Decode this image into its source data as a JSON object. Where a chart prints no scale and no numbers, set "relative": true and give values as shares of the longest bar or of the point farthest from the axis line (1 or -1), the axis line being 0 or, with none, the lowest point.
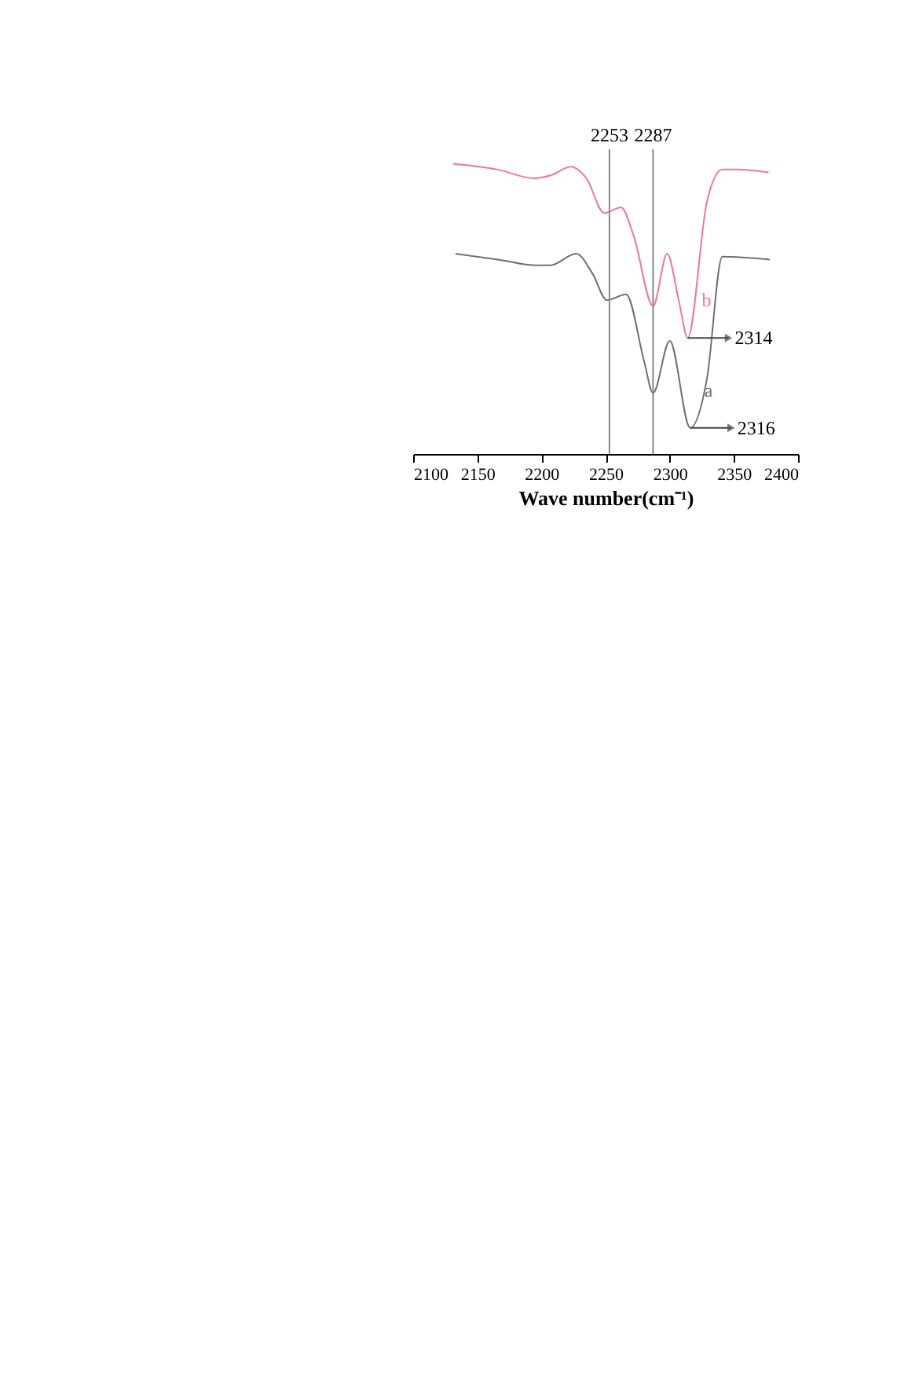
{
  "chart_data": {
    "type": "line",
    "relative": true,
    "xlabel": "Wave number(cm⁻¹)",
    "xlim": [
      2100,
      2400
    ],
    "xticks": [
      2100,
      2150,
      2200,
      2250,
      2300,
      2350,
      2400
    ],
    "grid": false,
    "tick_labels": "x",
    "series": [
      {
        "name": "b",
        "color": "#f07890",
        "x": [
          2131,
          2166,
          2194,
          2207,
          2223,
          2235,
          2249,
          2262,
          2272,
          2287,
          2298,
          2307,
          2314,
          2329,
          2341,
          2353,
          2377
        ],
        "values": [
          1.0,
          0.98,
          0.95,
          0.96,
          0.99,
          0.95,
          0.83,
          0.85,
          0.75,
          0.51,
          0.69,
          0.53,
          0.4,
          0.87,
          0.98,
          0.98,
          0.97
        ]
      },
      {
        "name": "a",
        "color": "#707070",
        "x": [
          2133,
          2166,
          2196,
          2207,
          2227,
          2240,
          2251,
          2266,
          2280,
          2287,
          2300,
          2316,
          2329,
          2341,
          2378
        ],
        "values": [
          0.69,
          0.67,
          0.65,
          0.65,
          0.69,
          0.62,
          0.53,
          0.55,
          0.32,
          0.21,
          0.39,
          0.09,
          0.26,
          0.68,
          0.67
        ]
      }
    ],
    "ref_lines": [
      {
        "axis": "x",
        "value": 2253,
        "label": "2253",
        "color": "#888888"
      },
      {
        "axis": "x",
        "value": 2287,
        "label": "2287",
        "color": "#888888"
      }
    ],
    "annotations": [
      {
        "text": "2314",
        "x": 2314,
        "y": 0.4
      },
      {
        "text": "2316",
        "x": 2316,
        "y": 0.09
      }
    ]
  }
}
